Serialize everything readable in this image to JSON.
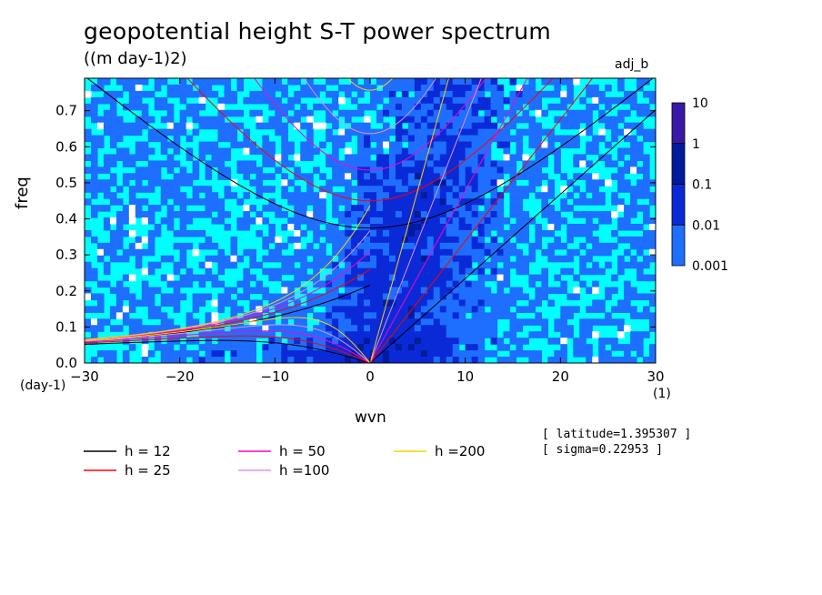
{
  "chart_data": {
    "type": "heatmap",
    "title": "geopotential height S-T power spectrum",
    "units": "((m day-1)2)",
    "run_label": "adj_b",
    "xlabel": "wvn",
    "ylabel": "freq",
    "x_unit_label": "(1)",
    "y_unit_label": "(day-1)",
    "xlim": [
      -30,
      30
    ],
    "ylim": [
      0,
      0.79
    ],
    "x_ticks": [
      -30,
      -20,
      -10,
      0,
      10,
      20,
      30
    ],
    "x_tick_labels": [
      "−30",
      "−20",
      "−10",
      "0",
      "10",
      "20",
      "30"
    ],
    "y_ticks": [
      0.0,
      0.1,
      0.2,
      0.3,
      0.4,
      0.5,
      0.6,
      0.7
    ],
    "y_tick_labels": [
      "0.0",
      "0.1",
      "0.2",
      "0.3",
      "0.4",
      "0.5",
      "0.6",
      "0.7"
    ],
    "colorbar": {
      "levels": [
        0.001,
        0.01,
        0.1,
        1,
        10
      ],
      "labels": [
        "10",
        "1",
        "0.1",
        "0.01",
        "0.001"
      ],
      "colors": [
        "#00ffff",
        "#1e6fff",
        "#0a2ad8",
        "#001c9c",
        "#3a18a8"
      ]
    },
    "dispersion_curves": [
      {
        "name": "h = 12",
        "h": 12,
        "color": "#000000"
      },
      {
        "name": "h = 25",
        "h": 25,
        "color": "#ff0000"
      },
      {
        "name": "h = 50",
        "h": 50,
        "color": "#ff00c8"
      },
      {
        "name": "h =100",
        "h": 100,
        "color": "#e090e8"
      },
      {
        "name": "h =200",
        "h": 200,
        "color": "#ffd000"
      }
    ],
    "annotations": [
      "[ latitude=1.395307 ]",
      "[ sigma=0.22953 ]"
    ]
  }
}
